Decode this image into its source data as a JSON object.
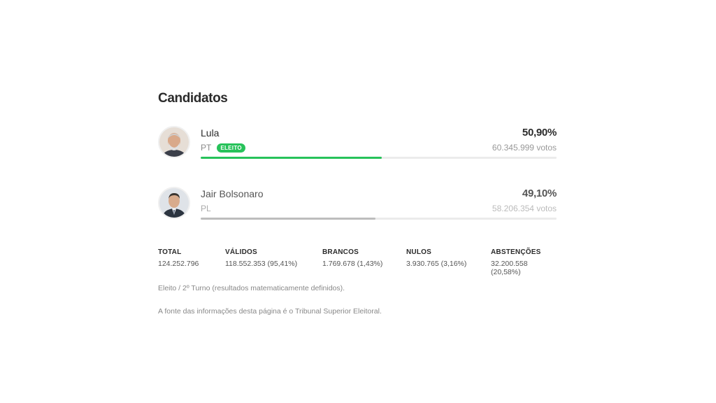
{
  "section_title": "Candidatos",
  "candidates": [
    {
      "name": "Lula",
      "party": "PT",
      "badge": "ELEITO",
      "percent": "50,90%",
      "votes": "60.345.999 votos",
      "share": 0.509,
      "bar_color": "#27c25a"
    },
    {
      "name": "Jair Bolsonaro",
      "party": "PL",
      "percent": "49,10%",
      "votes": "58.206.354 votos",
      "share": 0.491,
      "bar_color": "#bdbdbd"
    }
  ],
  "stats": [
    {
      "label": "TOTAL",
      "value": "124.252.796"
    },
    {
      "label": "VÁLIDOS",
      "value": "118.552.353 (95,41%)"
    },
    {
      "label": "BRANCOS",
      "value": "1.769.678 (1,43%)"
    },
    {
      "label": "NULOS",
      "value": "3.930.765 (3,16%)"
    },
    {
      "label": "ABSTENÇÕES",
      "value": "32.200.558 (20,58%)"
    }
  ],
  "notes": {
    "status": "Eleito / 2º Turno (resultados matematicamente definidos).",
    "source": "A fonte das informações desta página é o Tribunal Superior Eleitoral."
  },
  "colors": {
    "accent": "#27c25a",
    "loser_bar": "#bdbdbd"
  }
}
